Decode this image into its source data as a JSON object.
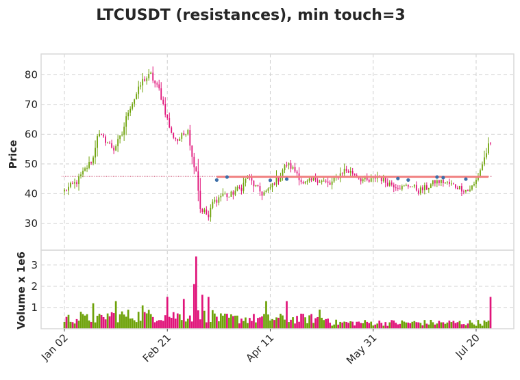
{
  "chart_data": {
    "type": "candlestick",
    "title": "LTCUSDT (resistances), min touch=3",
    "colors": {
      "up": "#6ea20a",
      "down": "#e0147a",
      "resistance": "#f08080",
      "touch": "#3c6ea8",
      "hline": "#c0305a"
    },
    "price_panel": {
      "ylabel": "Price",
      "ylim": [
        21,
        87
      ],
      "yticks": [
        30,
        40,
        50,
        60,
        70,
        80
      ],
      "reference_line": 45.8,
      "resistance": {
        "level": 45.7,
        "start_day": 74,
        "end_day": 206
      },
      "touches": [
        {
          "day": 74,
          "price": 44.6
        },
        {
          "day": 79,
          "price": 45.6
        },
        {
          "day": 100,
          "price": 44.5
        },
        {
          "day": 108,
          "price": 44.9
        },
        {
          "day": 162,
          "price": 45.1
        },
        {
          "day": 167,
          "price": 44.6
        },
        {
          "day": 181,
          "price": 45.6
        },
        {
          "day": 184,
          "price": 45.4
        },
        {
          "day": 195,
          "price": 44.9
        }
      ],
      "anchors": [
        [
          0,
          41
        ],
        [
          6,
          44
        ],
        [
          10,
          48
        ],
        [
          14,
          52
        ],
        [
          16,
          60
        ],
        [
          20,
          58
        ],
        [
          24,
          55
        ],
        [
          28,
          60
        ],
        [
          31,
          68
        ],
        [
          34,
          72
        ],
        [
          36,
          75
        ],
        [
          38,
          78
        ],
        [
          40,
          79
        ],
        [
          42,
          80
        ],
        [
          44,
          77
        ],
        [
          46,
          75
        ],
        [
          48,
          70
        ],
        [
          50,
          65
        ],
        [
          52,
          60
        ],
        [
          55,
          58
        ],
        [
          58,
          60
        ],
        [
          60,
          62
        ],
        [
          62,
          52
        ],
        [
          64,
          48
        ],
        [
          66,
          35
        ],
        [
          68,
          34
        ],
        [
          70,
          32
        ],
        [
          72,
          37
        ],
        [
          74,
          38
        ],
        [
          77,
          40
        ],
        [
          80,
          39
        ],
        [
          83,
          41
        ],
        [
          86,
          42
        ],
        [
          89,
          46
        ],
        [
          92,
          43
        ],
        [
          96,
          40
        ],
        [
          99,
          41
        ],
        [
          102,
          44
        ],
        [
          104,
          45
        ],
        [
          106,
          48
        ],
        [
          108,
          50
        ],
        [
          110,
          49
        ],
        [
          113,
          47
        ],
        [
          116,
          43
        ],
        [
          119,
          44
        ],
        [
          122,
          45
        ],
        [
          126,
          44
        ],
        [
          129,
          43
        ],
        [
          133,
          46
        ],
        [
          136,
          48
        ],
        [
          140,
          47
        ],
        [
          144,
          45
        ],
        [
          148,
          44
        ],
        [
          152,
          46
        ],
        [
          156,
          44
        ],
        [
          160,
          43
        ],
        [
          164,
          42
        ],
        [
          168,
          43
        ],
        [
          172,
          41
        ],
        [
          176,
          42
        ],
        [
          180,
          44
        ],
        [
          184,
          44
        ],
        [
          188,
          43
        ],
        [
          192,
          42
        ],
        [
          196,
          41
        ],
        [
          199,
          43
        ],
        [
          201,
          46
        ],
        [
          203,
          50
        ],
        [
          206,
          56
        ]
      ]
    },
    "volume_panel": {
      "ylabel": "Volume x 1e6",
      "ylim": [
        0,
        3.7
      ],
      "yticks": [
        1,
        2,
        3
      ],
      "peaks": [
        [
          8,
          0.8
        ],
        [
          14,
          1.2
        ],
        [
          25,
          1.3
        ],
        [
          38,
          1.1
        ],
        [
          50,
          1.5
        ],
        [
          58,
          1.4
        ],
        [
          63,
          2.1
        ],
        [
          64,
          3.4
        ],
        [
          67,
          1.6
        ],
        [
          70,
          1.5
        ],
        [
          98,
          1.3
        ],
        [
          108,
          1.3
        ],
        [
          124,
          0.9
        ],
        [
          207,
          1.5
        ]
      ]
    },
    "x_axis": {
      "n_days": 208,
      "ticks": [
        {
          "day": 0,
          "label": "Jan 02"
        },
        {
          "day": 50,
          "label": "Feb 21"
        },
        {
          "day": 100,
          "label": "Apr 11"
        },
        {
          "day": 150,
          "label": "May 31"
        },
        {
          "day": 200,
          "label": "Jul 20"
        }
      ]
    }
  }
}
